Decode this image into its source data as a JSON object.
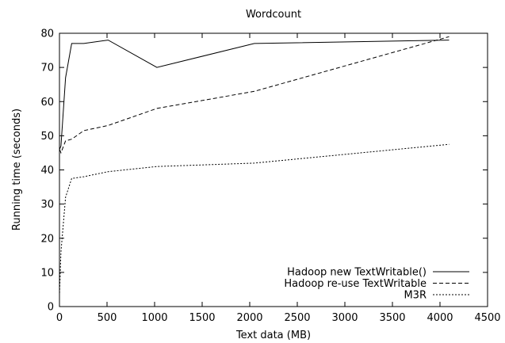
{
  "chart_data": {
    "type": "line",
    "title": "Wordcount",
    "xlabel": "Text data (MB)",
    "ylabel": "Running time (seconds)",
    "xlim": [
      0,
      4500
    ],
    "ylim": [
      0,
      80
    ],
    "x_ticks": [
      0,
      500,
      1000,
      1500,
      2000,
      2500,
      3000,
      3500,
      4000,
      4500
    ],
    "y_ticks": [
      0,
      10,
      20,
      30,
      40,
      50,
      60,
      70,
      80
    ],
    "grid": false,
    "legend_position": "bottom-right",
    "series": [
      {
        "name": "Hadoop new TextWritable()",
        "dash": "solid",
        "points": [
          [
            1,
            46
          ],
          [
            16,
            47
          ],
          [
            64,
            67
          ],
          [
            128,
            77
          ],
          [
            256,
            77
          ],
          [
            512,
            78
          ],
          [
            1024,
            70
          ],
          [
            2048,
            77
          ],
          [
            4096,
            78
          ]
        ]
      },
      {
        "name": "Hadoop re-use TextWritable",
        "dash": "dashed",
        "points": [
          [
            1,
            46
          ],
          [
            16,
            45
          ],
          [
            64,
            48.5
          ],
          [
            128,
            49
          ],
          [
            256,
            51.5
          ],
          [
            512,
            53
          ],
          [
            1024,
            58
          ],
          [
            2048,
            63
          ],
          [
            4096,
            79
          ]
        ]
      },
      {
        "name": "M3R",
        "dash": "dotted",
        "points": [
          [
            1,
            4
          ],
          [
            16,
            16
          ],
          [
            64,
            32
          ],
          [
            128,
            37.5
          ],
          [
            256,
            38
          ],
          [
            512,
            39.5
          ],
          [
            1024,
            41
          ],
          [
            2048,
            42
          ],
          [
            4096,
            47.5
          ]
        ]
      }
    ]
  }
}
